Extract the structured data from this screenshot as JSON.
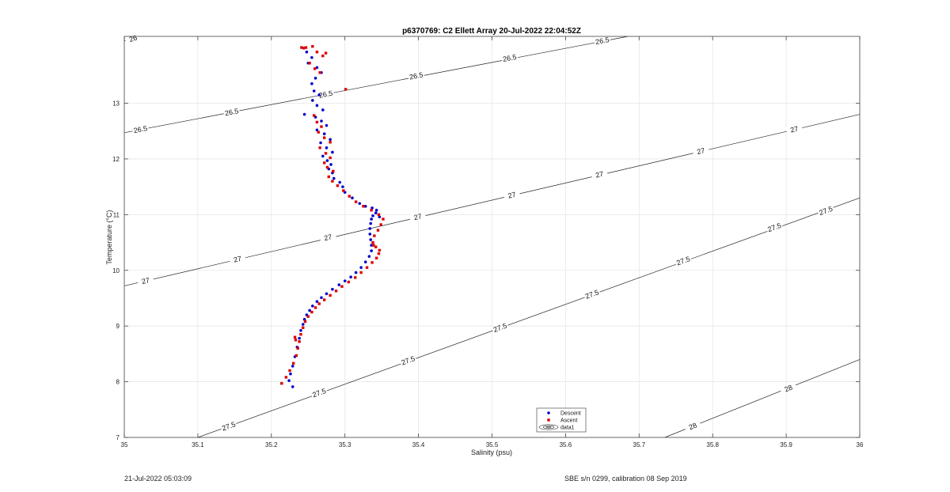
{
  "chart_data": {
    "type": "scatter",
    "title": "p6370769: C2 Ellett Array 20-Jul-2022 22:04:52Z",
    "xlabel": "Salinity (psu)",
    "ylabel": "Temperature (°C)",
    "xlim": [
      35,
      36
    ],
    "ylim": [
      7,
      14.2
    ],
    "xticks": [
      35,
      35.1,
      35.2,
      35.3,
      35.4,
      35.5,
      35.6,
      35.7,
      35.8,
      35.9,
      36
    ],
    "xtick_labels": [
      "35",
      "35.1",
      "35.2",
      "35.3",
      "35.4",
      "35.5",
      "35.6",
      "35.7",
      "35.8",
      "35.9",
      "36"
    ],
    "yticks": [
      7,
      8,
      9,
      10,
      11,
      12,
      13
    ],
    "ytick_labels": [
      "7",
      "8",
      "9",
      "10",
      "11",
      "12",
      "13"
    ],
    "grid": true,
    "legend_position": "bottom-center",
    "density_contours": [
      {
        "label": "26",
        "level": 26,
        "x": [
          35.0,
          35.02
        ],
        "y": [
          14.12,
          14.2
        ],
        "label_positions": [
          [
            35.012,
            14.16
          ]
        ]
      },
      {
        "label": "26.5",
        "level": 26.5,
        "x": [
          35.0,
          35.685
        ],
        "y": [
          12.47,
          14.2
        ],
        "label_positions": [
          [
            35.022,
            12.53
          ],
          [
            35.146,
            12.84
          ],
          [
            35.274,
            13.16
          ],
          [
            35.397,
            13.49
          ],
          [
            35.524,
            13.81
          ],
          [
            35.65,
            14.12
          ]
        ]
      },
      {
        "label": "27",
        "level": 27,
        "x": [
          35.0,
          36.0
        ],
        "y": [
          9.72,
          12.8
        ],
        "label_positions": [
          [
            35.029,
            9.81
          ],
          [
            35.154,
            10.2
          ],
          [
            35.277,
            10.59
          ],
          [
            35.399,
            10.96
          ],
          [
            35.527,
            11.35
          ],
          [
            35.646,
            11.72
          ],
          [
            35.784,
            12.14
          ],
          [
            35.911,
            12.53
          ]
        ]
      },
      {
        "label": "27.5",
        "level": 27.5,
        "x": [
          35.1,
          36.0
        ],
        "y": [
          7.0,
          11.3
        ],
        "label_positions": [
          [
            35.142,
            7.2
          ],
          [
            35.265,
            7.8
          ],
          [
            35.386,
            8.38
          ],
          [
            35.511,
            8.97
          ],
          [
            35.636,
            9.57
          ],
          [
            35.76,
            10.17
          ],
          [
            35.884,
            10.77
          ],
          [
            35.954,
            11.07
          ]
        ]
      },
      {
        "label": "28",
        "level": 28,
        "x": [
          35.735,
          36.0
        ],
        "y": [
          7.0,
          8.4
        ],
        "label_positions": [
          [
            35.773,
            7.2
          ],
          [
            35.903,
            7.88
          ]
        ]
      }
    ],
    "series": [
      {
        "name": "Descent",
        "color": "#0000cc",
        "x": [
          35.229,
          35.224,
          35.226,
          35.229,
          35.232,
          35.235,
          35.238,
          35.24,
          35.243,
          35.245,
          35.248,
          35.252,
          35.256,
          35.262,
          35.268,
          35.275,
          35.283,
          35.292,
          35.3,
          35.308,
          35.315,
          35.322,
          35.328,
          35.333,
          35.336,
          35.336,
          35.335,
          35.334,
          35.334,
          35.335,
          35.336,
          35.338,
          35.342,
          35.347,
          35.343,
          35.337,
          35.328,
          35.32,
          35.31,
          35.3,
          35.297,
          35.293,
          35.285,
          35.283,
          35.278,
          35.281,
          35.276,
          35.27,
          35.283,
          35.275,
          35.267,
          35.28,
          35.272,
          35.262,
          35.275,
          35.268,
          35.26,
          35.245,
          35.27,
          35.262,
          35.256,
          35.265,
          35.258,
          35.255,
          35.26,
          35.268,
          35.262,
          35.25,
          35.255,
          35.248
        ],
        "y": [
          7.91,
          8.02,
          8.14,
          8.28,
          8.45,
          8.62,
          8.78,
          8.92,
          9.03,
          9.12,
          9.2,
          9.28,
          9.36,
          9.44,
          9.51,
          9.58,
          9.66,
          9.74,
          9.81,
          9.88,
          9.96,
          10.05,
          10.15,
          10.25,
          10.35,
          10.45,
          10.55,
          10.65,
          10.75,
          10.84,
          10.92,
          10.98,
          11.03,
          10.96,
          11.08,
          11.12,
          11.15,
          11.2,
          11.3,
          11.4,
          11.5,
          11.58,
          11.65,
          11.75,
          11.82,
          11.9,
          11.97,
          12.05,
          12.12,
          12.2,
          12.29,
          12.35,
          12.45,
          12.52,
          12.6,
          12.68,
          12.75,
          12.8,
          12.88,
          12.96,
          13.05,
          13.15,
          13.22,
          13.35,
          13.45,
          13.55,
          13.64,
          13.72,
          13.82,
          13.92
        ]
      },
      {
        "name": "Ascent",
        "color": "#dd0000",
        "x": [
          35.214,
          35.22,
          35.225,
          35.23,
          35.234,
          35.236,
          35.238,
          35.24,
          35.243,
          35.246,
          35.25,
          35.255,
          35.26,
          35.265,
          35.272,
          35.28,
          35.288,
          35.296,
          35.305,
          35.314,
          35.322,
          35.33,
          35.337,
          35.343,
          35.346,
          35.347,
          35.342,
          35.339,
          35.338,
          35.34,
          35.345,
          35.349,
          35.352,
          35.346,
          35.336,
          35.325,
          35.315,
          35.306,
          35.298,
          35.29,
          35.283,
          35.278,
          35.284,
          35.276,
          35.272,
          35.28,
          35.274,
          35.266,
          35.28,
          35.272,
          35.264,
          35.268,
          35.262,
          35.258,
          35.301,
          35.266,
          35.259,
          35.252,
          35.27,
          35.262,
          35.274,
          35.256,
          35.241,
          35.244,
          35.247,
          35.233,
          35.232
        ],
        "y": [
          7.97,
          8.08,
          8.2,
          8.33,
          8.47,
          8.6,
          8.72,
          8.85,
          8.97,
          9.08,
          9.17,
          9.25,
          9.33,
          9.4,
          9.47,
          9.55,
          9.63,
          9.71,
          9.79,
          9.87,
          9.96,
          10.05,
          10.14,
          10.22,
          10.3,
          10.36,
          10.42,
          10.45,
          10.5,
          10.62,
          10.72,
          10.82,
          10.92,
          11.0,
          11.08,
          11.15,
          11.23,
          11.33,
          11.43,
          11.52,
          11.6,
          11.68,
          11.78,
          11.85,
          11.93,
          12.02,
          12.1,
          12.2,
          12.3,
          12.38,
          12.48,
          12.58,
          12.66,
          12.78,
          13.25,
          13.55,
          13.62,
          13.72,
          13.85,
          13.92,
          13.9,
          14.02,
          14.0,
          13.99,
          14.0,
          8.75,
          8.8
        ]
      }
    ],
    "legend": {
      "entries": [
        "Descent",
        "Ascent",
        "data1"
      ]
    }
  },
  "footer": {
    "left": "21-Jul-2022 05:03:09",
    "right": "SBE s/n 0299, calibration 08 Sep 2019"
  }
}
